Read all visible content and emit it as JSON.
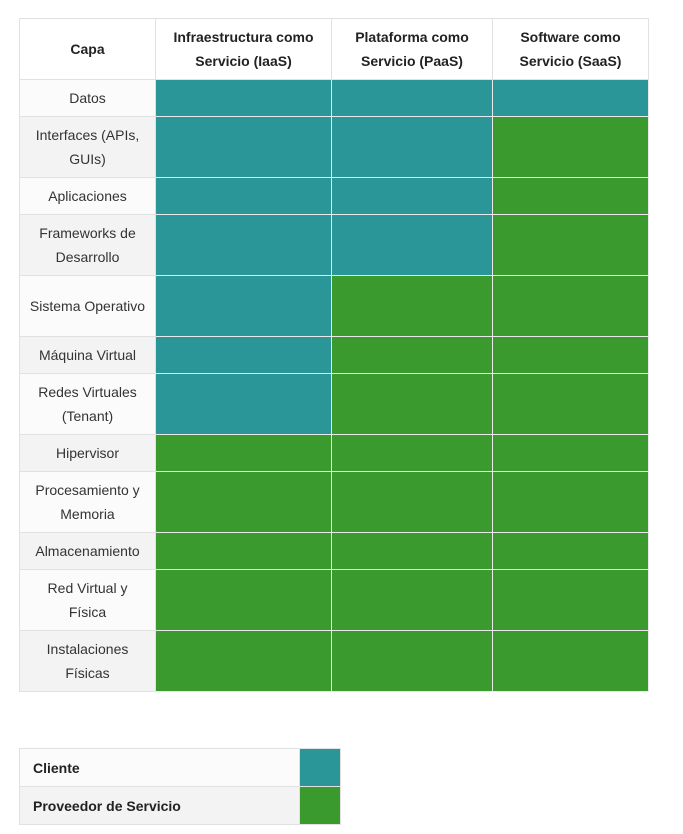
{
  "headers": {
    "capa": "Capa",
    "iaas": "Infraestructura como Servicio (IaaS)",
    "paas": "Plataforma como Servicio (PaaS)",
    "saas": "Software como Servicio (SaaS)"
  },
  "rows": [
    {
      "layer": "Datos",
      "iaas": "cliente",
      "paas": "cliente",
      "saas": "cliente"
    },
    {
      "layer": "Interfaces (APIs, GUIs)",
      "iaas": "cliente",
      "paas": "cliente",
      "saas": "proveedor"
    },
    {
      "layer": "Aplicaciones",
      "iaas": "cliente",
      "paas": "cliente",
      "saas": "proveedor"
    },
    {
      "layer": "Frameworks de Desarrollo",
      "iaas": "cliente",
      "paas": "cliente",
      "saas": "proveedor"
    },
    {
      "layer": "Sistema Operativo",
      "iaas": "cliente",
      "paas": "proveedor",
      "saas": "proveedor"
    },
    {
      "layer": "Máquina Virtual",
      "iaas": "cliente",
      "paas": "proveedor",
      "saas": "proveedor"
    },
    {
      "layer": "Redes Virtuales (Tenant)",
      "iaas": "cliente",
      "paas": "proveedor",
      "saas": "proveedor"
    },
    {
      "layer": "Hipervisor",
      "iaas": "proveedor",
      "paas": "proveedor",
      "saas": "proveedor"
    },
    {
      "layer": "Procesamiento y Memoria",
      "iaas": "proveedor",
      "paas": "proveedor",
      "saas": "proveedor"
    },
    {
      "layer": "Almacenamiento",
      "iaas": "proveedor",
      "paas": "proveedor",
      "saas": "proveedor"
    },
    {
      "layer": "Red Virtual y Física",
      "iaas": "proveedor",
      "paas": "proveedor",
      "saas": "proveedor"
    },
    {
      "layer": "Instalaciones Físicas",
      "iaas": "proveedor",
      "paas": "proveedor",
      "saas": "proveedor"
    }
  ],
  "legend": [
    {
      "key": "cliente",
      "label": "Cliente",
      "color": "#2a9697"
    },
    {
      "key": "proveedor",
      "label": "Proveedor de Servicio",
      "color": "#3b9a2e"
    }
  ]
}
